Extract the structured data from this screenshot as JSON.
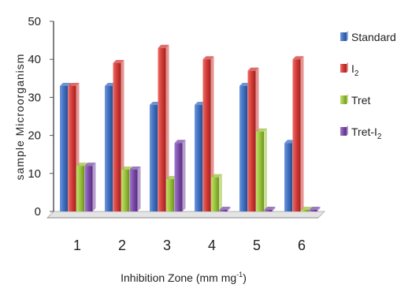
{
  "chart_data": {
    "type": "bar",
    "categories": [
      "1",
      "2",
      "3",
      "4",
      "5",
      "6"
    ],
    "series": [
      {
        "name": "Standard",
        "values": [
          33,
          33,
          28,
          28,
          33,
          18
        ],
        "color": "#3f6fbf"
      },
      {
        "name": "I2",
        "values": [
          33,
          39,
          43,
          40,
          37,
          40
        ],
        "color": "#d23a36"
      },
      {
        "name": "Tret",
        "values": [
          12,
          11,
          8.5,
          9,
          21,
          0
        ],
        "color": "#9bc23c"
      },
      {
        "name": "Tret-I2",
        "values": [
          12,
          11,
          18,
          0,
          0,
          0
        ],
        "color": "#7b4ca8"
      }
    ],
    "xlabel": "Inhibition Zone (mm mg",
    "xlabel_sup": "-1",
    "xlabel_end": ")",
    "ylabel": "sample  Microorganism",
    "ylim": [
      0,
      50
    ],
    "yticks": [
      "0",
      "10",
      "20",
      "30",
      "40",
      "50"
    ],
    "legend_position": "right",
    "legend": [
      {
        "text": "Standard",
        "sub": ""
      },
      {
        "text": "I",
        "sub": "2"
      },
      {
        "text": "Tret",
        "sub": ""
      },
      {
        "text": "Tret-I",
        "sub": "2"
      }
    ]
  }
}
